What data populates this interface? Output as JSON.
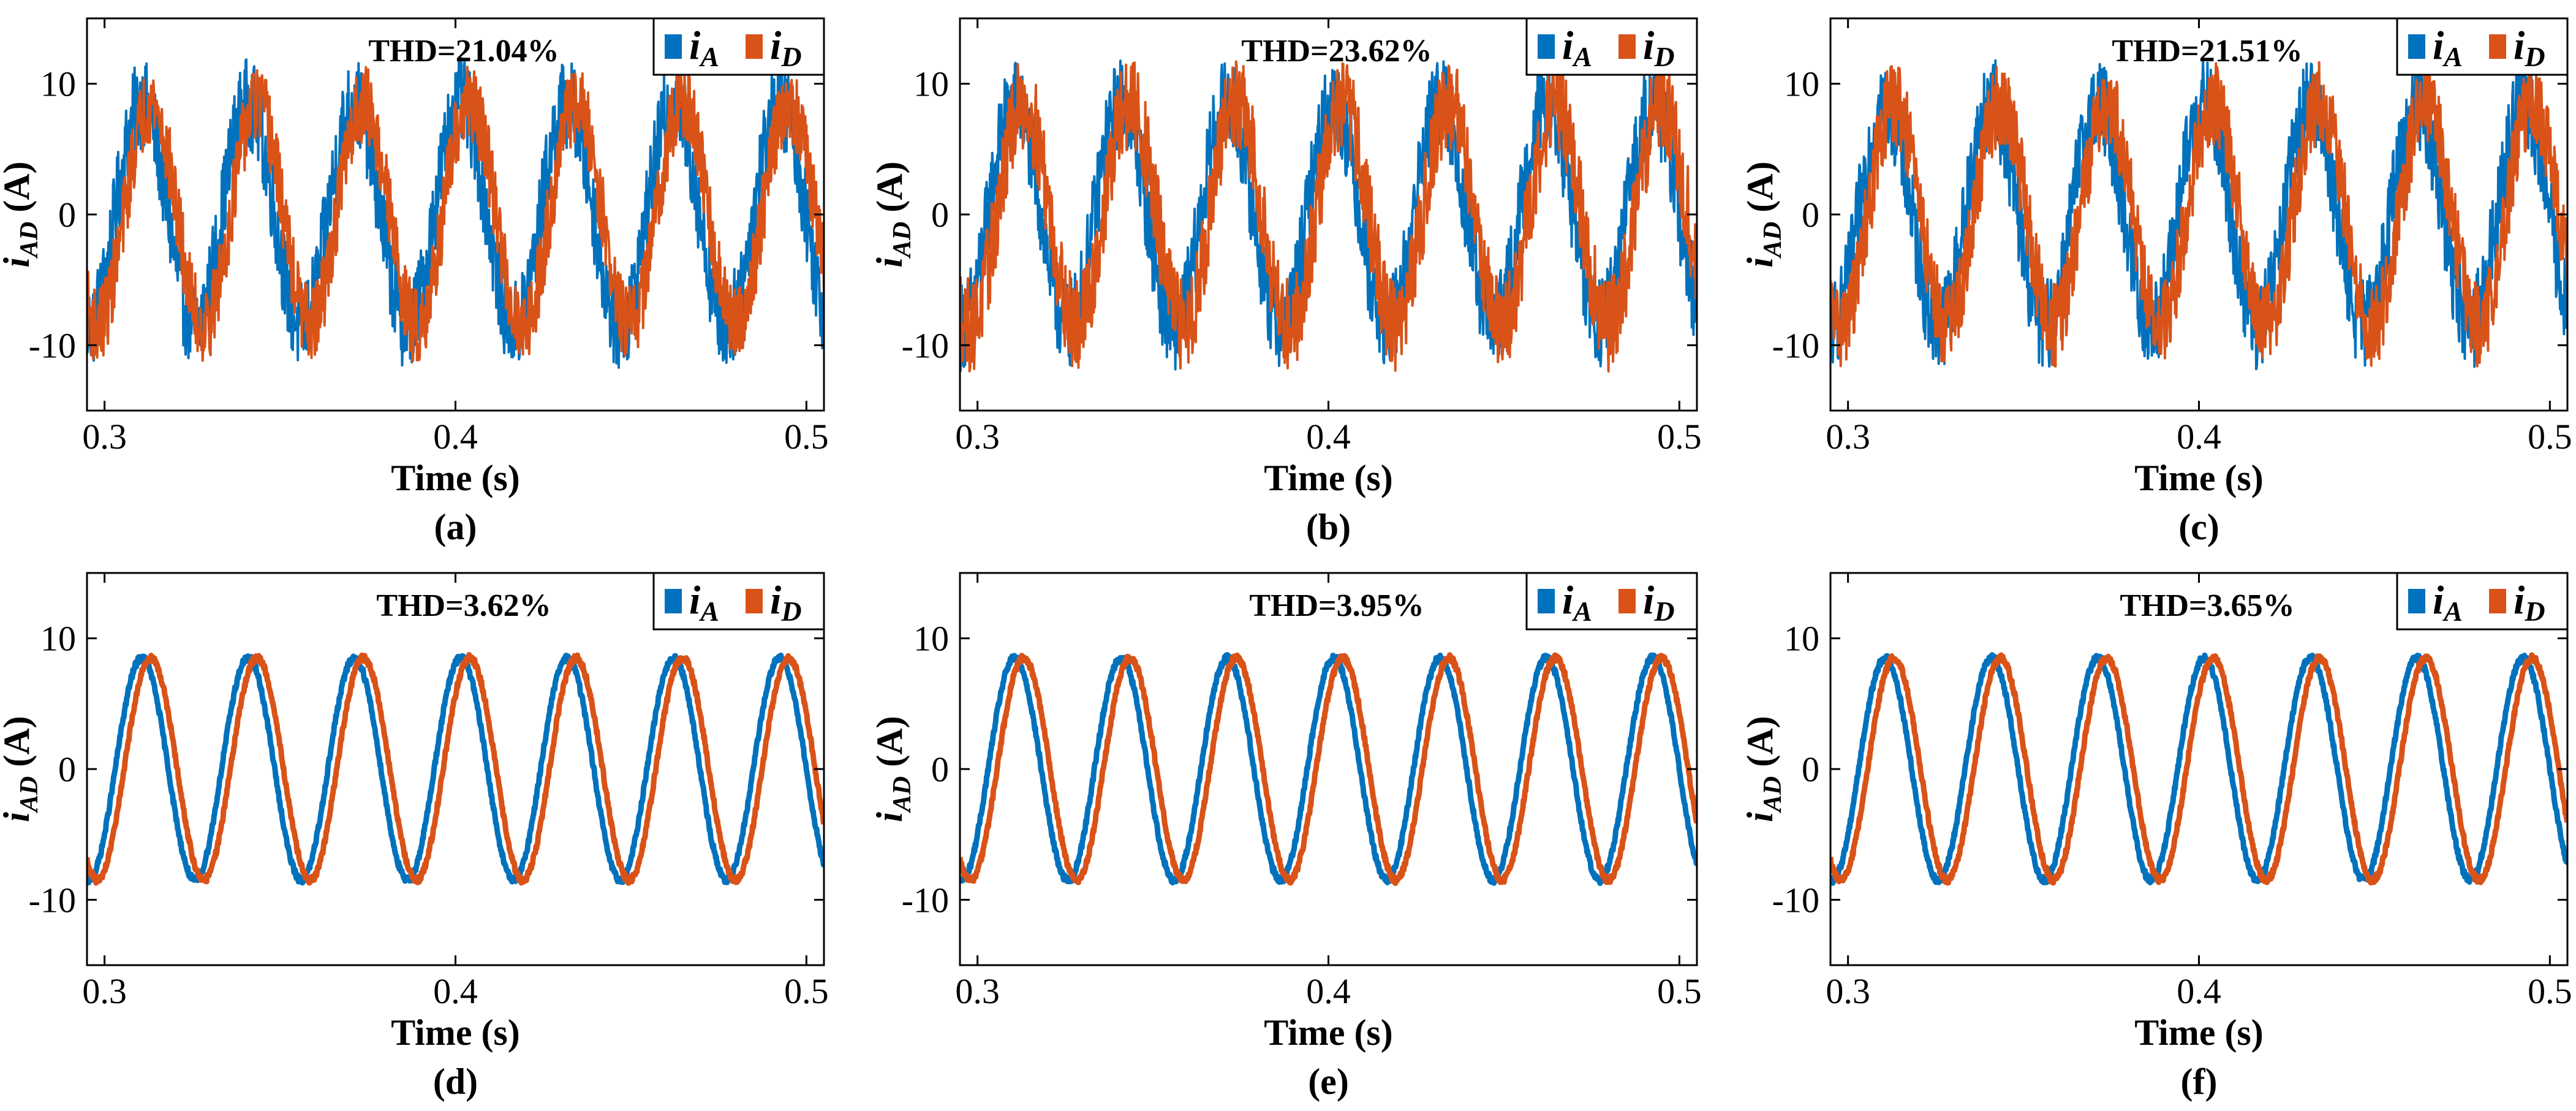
{
  "chart_data": [
    {
      "type": "line",
      "panel": "(a)",
      "thd": "THD=21.04%",
      "title": "",
      "xlabel": "Time (s)",
      "ylabel_main": "i",
      "ylabel_sub": "AD",
      "ylabel_unit": " (A)",
      "xlim": [
        0.295,
        0.505
      ],
      "ylim": [
        -15,
        15
      ],
      "xticks": [
        0.3,
        0.4,
        0.5
      ],
      "xtick_labels": [
        "0.3",
        "0.4",
        "0.5"
      ],
      "yticks": [
        -10,
        0,
        10
      ],
      "ytick_labels": [
        "-10",
        "0",
        "10"
      ],
      "legend": [
        {
          "label_main": "i",
          "label_sub": "A",
          "color": "#0072BD"
        },
        {
          "label_main": "i",
          "label_sub": "D",
          "color": "#D95319"
        }
      ],
      "series": [
        {
          "name": "iA",
          "frequency_hz": 33,
          "amplitude": 8.5,
          "phase_deg": 0,
          "noise_amplitude": 3.5,
          "color": "#0072BD"
        },
        {
          "name": "iD",
          "frequency_hz": 33,
          "amplitude": 8.5,
          "phase_deg": -30,
          "noise_amplitude": 3.0,
          "color": "#D95319"
        }
      ]
    },
    {
      "type": "line",
      "panel": "(b)",
      "thd": "THD=23.62%",
      "title": "",
      "xlabel": "Time (s)",
      "ylabel_main": "i",
      "ylabel_sub": "AD",
      "ylabel_unit": " (A)",
      "xlim": [
        0.295,
        0.505
      ],
      "ylim": [
        -15,
        15
      ],
      "xticks": [
        0.3,
        0.4,
        0.5
      ],
      "xtick_labels": [
        "0.3",
        "0.4",
        "0.5"
      ],
      "yticks": [
        -10,
        0,
        10
      ],
      "ytick_labels": [
        "-10",
        "0",
        "10"
      ],
      "legend": [
        {
          "label_main": "i",
          "label_sub": "A",
          "color": "#0072BD"
        },
        {
          "label_main": "i",
          "label_sub": "D",
          "color": "#D95319"
        }
      ],
      "series": [
        {
          "name": "iA",
          "frequency_hz": 33,
          "amplitude": 8.5,
          "phase_deg": 0,
          "noise_amplitude": 3.5,
          "color": "#0072BD"
        },
        {
          "name": "iD",
          "frequency_hz": 33,
          "amplitude": 8.5,
          "phase_deg": -30,
          "noise_amplitude": 3.6,
          "color": "#D95319"
        }
      ]
    },
    {
      "type": "line",
      "panel": "(c)",
      "thd": "THD=21.51%",
      "title": "",
      "xlabel": "Time (s)",
      "ylabel_main": "i",
      "ylabel_sub": "AD",
      "ylabel_unit": " (A)",
      "xlim": [
        0.295,
        0.505
      ],
      "ylim": [
        -15,
        15
      ],
      "xticks": [
        0.3,
        0.4,
        0.5
      ],
      "xtick_labels": [
        "0.3",
        "0.4",
        "0.5"
      ],
      "yticks": [
        -10,
        0,
        10
      ],
      "ytick_labels": [
        "-10",
        "0",
        "10"
      ],
      "legend": [
        {
          "label_main": "i",
          "label_sub": "A",
          "color": "#0072BD"
        },
        {
          "label_main": "i",
          "label_sub": "D",
          "color": "#D95319"
        }
      ],
      "series": [
        {
          "name": "iA",
          "frequency_hz": 33,
          "amplitude": 8.5,
          "phase_deg": 0,
          "noise_amplitude": 3.5,
          "color": "#0072BD"
        },
        {
          "name": "iD",
          "frequency_hz": 33,
          "amplitude": 8.5,
          "phase_deg": -30,
          "noise_amplitude": 3.2,
          "color": "#D95319"
        }
      ]
    },
    {
      "type": "line",
      "panel": "(d)",
      "thd": "THD=3.62%",
      "title": "",
      "xlabel": "Time (s)",
      "ylabel_main": "i",
      "ylabel_sub": "AD",
      "ylabel_unit": " (A)",
      "xlim": [
        0.295,
        0.505
      ],
      "ylim": [
        -15,
        15
      ],
      "xticks": [
        0.3,
        0.4,
        0.5
      ],
      "xtick_labels": [
        "0.3",
        "0.4",
        "0.5"
      ],
      "yticks": [
        -10,
        0,
        10
      ],
      "ytick_labels": [
        "-10",
        "0",
        "10"
      ],
      "legend": [
        {
          "label_main": "i",
          "label_sub": "A",
          "color": "#0072BD"
        },
        {
          "label_main": "i",
          "label_sub": "D",
          "color": "#D95319"
        }
      ],
      "series": [
        {
          "name": "iA",
          "frequency_hz": 33,
          "amplitude": 8.5,
          "phase_deg": 0,
          "noise_amplitude": 0.25,
          "color": "#0072BD"
        },
        {
          "name": "iD",
          "frequency_hz": 33,
          "amplitude": 8.5,
          "phase_deg": -30,
          "noise_amplitude": 0.25,
          "color": "#D95319"
        }
      ]
    },
    {
      "type": "line",
      "panel": "(e)",
      "thd": "THD=3.95%",
      "title": "",
      "xlabel": "Time (s)",
      "ylabel_main": "i",
      "ylabel_sub": "AD",
      "ylabel_unit": " (A)",
      "xlim": [
        0.295,
        0.505
      ],
      "ylim": [
        -15,
        15
      ],
      "xticks": [
        0.3,
        0.4,
        0.5
      ],
      "xtick_labels": [
        "0.3",
        "0.4",
        "0.5"
      ],
      "yticks": [
        -10,
        0,
        10
      ],
      "ytick_labels": [
        "-10",
        "0",
        "10"
      ],
      "legend": [
        {
          "label_main": "i",
          "label_sub": "A",
          "color": "#0072BD"
        },
        {
          "label_main": "i",
          "label_sub": "D",
          "color": "#D95319"
        }
      ],
      "series": [
        {
          "name": "iA",
          "frequency_hz": 33,
          "amplitude": 8.5,
          "phase_deg": 0,
          "noise_amplitude": 0.25,
          "color": "#0072BD"
        },
        {
          "name": "iD",
          "frequency_hz": 33,
          "amplitude": 8.5,
          "phase_deg": -30,
          "noise_amplitude": 0.25,
          "color": "#D95319"
        }
      ]
    },
    {
      "type": "line",
      "panel": "(f)",
      "thd": "THD=3.65%",
      "title": "",
      "xlabel": "Time (s)",
      "ylabel_main": "i",
      "ylabel_sub": "AD",
      "ylabel_unit": " (A)",
      "xlim": [
        0.295,
        0.505
      ],
      "ylim": [
        -15,
        15
      ],
      "xticks": [
        0.3,
        0.4,
        0.5
      ],
      "xtick_labels": [
        "0.3",
        "0.4",
        "0.5"
      ],
      "yticks": [
        -10,
        0,
        10
      ],
      "ytick_labels": [
        "-10",
        "0",
        "10"
      ],
      "legend": [
        {
          "label_main": "i",
          "label_sub": "A",
          "color": "#0072BD"
        },
        {
          "label_main": "i",
          "label_sub": "D",
          "color": "#D95319"
        }
      ],
      "series": [
        {
          "name": "iA",
          "frequency_hz": 33,
          "amplitude": 8.5,
          "phase_deg": 0,
          "noise_amplitude": 0.25,
          "color": "#0072BD"
        },
        {
          "name": "iD",
          "frequency_hz": 33,
          "amplitude": 8.5,
          "phase_deg": -30,
          "noise_amplitude": 0.25,
          "color": "#D95319"
        }
      ]
    }
  ]
}
